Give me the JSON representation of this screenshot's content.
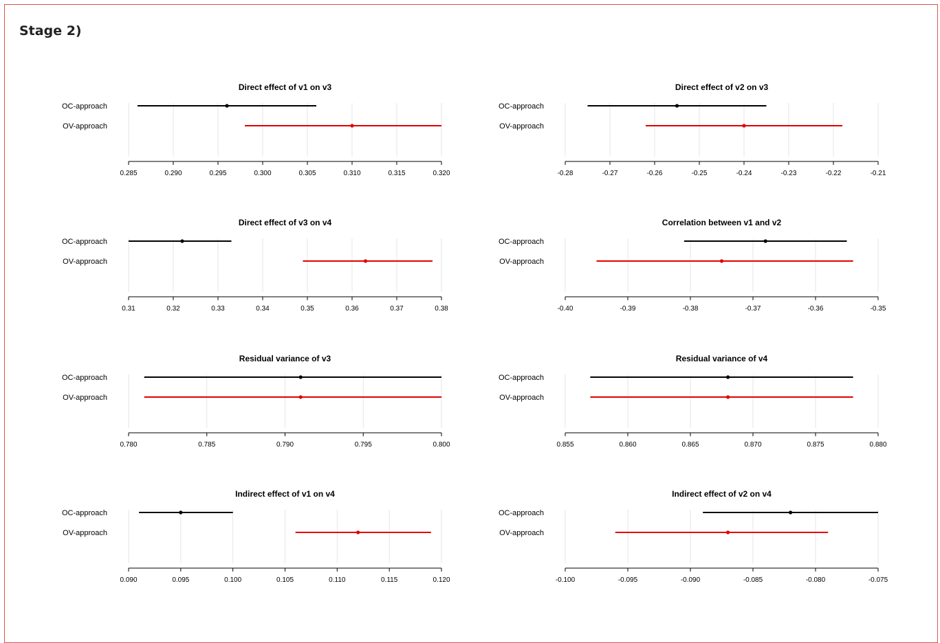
{
  "page": {
    "title": "Stage 2)"
  },
  "colors": {
    "oc": "#000000",
    "ov": "#e00000",
    "grid": "#e6e6e6",
    "axis": "#000000",
    "frame": "#d9534f"
  },
  "chart_data": [
    {
      "type": "forest",
      "title": "Direct effect of v1 on v3",
      "xlim": [
        0.285,
        0.32
      ],
      "ticks": [
        "0.285",
        "0.290",
        "0.295",
        "0.300",
        "0.305",
        "0.310",
        "0.315",
        "0.320"
      ],
      "grid": true,
      "series": [
        {
          "name": "OC-approach",
          "estimate": 0.296,
          "lower": 0.286,
          "upper": 0.306
        },
        {
          "name": "OV-approach",
          "estimate": 0.31,
          "lower": 0.298,
          "upper": 0.32
        }
      ]
    },
    {
      "type": "forest",
      "title": "Direct effect of v2 on v3",
      "xlim": [
        -0.28,
        -0.21
      ],
      "ticks": [
        "-0.28",
        "-0.27",
        "-0.26",
        "-0.25",
        "-0.24",
        "-0.23",
        "-0.22",
        "-0.21"
      ],
      "grid": true,
      "series": [
        {
          "name": "OC-approach",
          "estimate": -0.255,
          "lower": -0.275,
          "upper": -0.235
        },
        {
          "name": "OV-approach",
          "estimate": -0.24,
          "lower": -0.262,
          "upper": -0.218
        }
      ]
    },
    {
      "type": "forest",
      "title": "Direct effect of v3 on v4",
      "xlim": [
        0.31,
        0.38
      ],
      "ticks": [
        "0.31",
        "0.32",
        "0.33",
        "0.34",
        "0.35",
        "0.36",
        "0.37",
        "0.38"
      ],
      "grid": true,
      "series": [
        {
          "name": "OC-approach",
          "estimate": 0.322,
          "lower": 0.31,
          "upper": 0.333
        },
        {
          "name": "OV-approach",
          "estimate": 0.363,
          "lower": 0.349,
          "upper": 0.378
        }
      ]
    },
    {
      "type": "forest",
      "title": "Correlation between v1 and v2",
      "xlim": [
        -0.4,
        -0.35
      ],
      "ticks": [
        "-0.40",
        "-0.39",
        "-0.38",
        "-0.37",
        "-0.36",
        "-0.35"
      ],
      "grid": true,
      "series": [
        {
          "name": "OC-approach",
          "estimate": -0.368,
          "lower": -0.381,
          "upper": -0.355
        },
        {
          "name": "OV-approach",
          "estimate": -0.375,
          "lower": -0.395,
          "upper": -0.354
        }
      ]
    },
    {
      "type": "forest",
      "title": "Residual variance of v3",
      "xlim": [
        0.78,
        0.8
      ],
      "ticks": [
        "0.780",
        "0.785",
        "0.790",
        "0.795",
        "0.800"
      ],
      "grid": true,
      "series": [
        {
          "name": "OC-approach",
          "estimate": 0.791,
          "lower": 0.781,
          "upper": 0.8
        },
        {
          "name": "OV-approach",
          "estimate": 0.791,
          "lower": 0.781,
          "upper": 0.8
        }
      ]
    },
    {
      "type": "forest",
      "title": "Residual variance of v4",
      "xlim": [
        0.855,
        0.88
      ],
      "ticks": [
        "0.855",
        "0.860",
        "0.865",
        "0.870",
        "0.875",
        "0.880"
      ],
      "grid": true,
      "series": [
        {
          "name": "OC-approach",
          "estimate": 0.868,
          "lower": 0.857,
          "upper": 0.878
        },
        {
          "name": "OV-approach",
          "estimate": 0.868,
          "lower": 0.857,
          "upper": 0.878
        }
      ]
    },
    {
      "type": "forest",
      "title": "Indirect effect of v1 on v4",
      "xlim": [
        0.09,
        0.12
      ],
      "ticks": [
        "0.090",
        "0.095",
        "0.100",
        "0.105",
        "0.110",
        "0.115",
        "0.120"
      ],
      "grid": true,
      "series": [
        {
          "name": "OC-approach",
          "estimate": 0.095,
          "lower": 0.091,
          "upper": 0.1
        },
        {
          "name": "OV-approach",
          "estimate": 0.112,
          "lower": 0.106,
          "upper": 0.119
        }
      ]
    },
    {
      "type": "forest",
      "title": "Indirect effect of v2 on v4",
      "xlim": [
        -0.1,
        -0.075
      ],
      "ticks": [
        "-0.100",
        "-0.095",
        "-0.090",
        "-0.085",
        "-0.080",
        "-0.075"
      ],
      "grid": true,
      "series": [
        {
          "name": "OC-approach",
          "estimate": -0.082,
          "lower": -0.089,
          "upper": -0.075
        },
        {
          "name": "OV-approach",
          "estimate": -0.087,
          "lower": -0.096,
          "upper": -0.079
        }
      ]
    }
  ]
}
